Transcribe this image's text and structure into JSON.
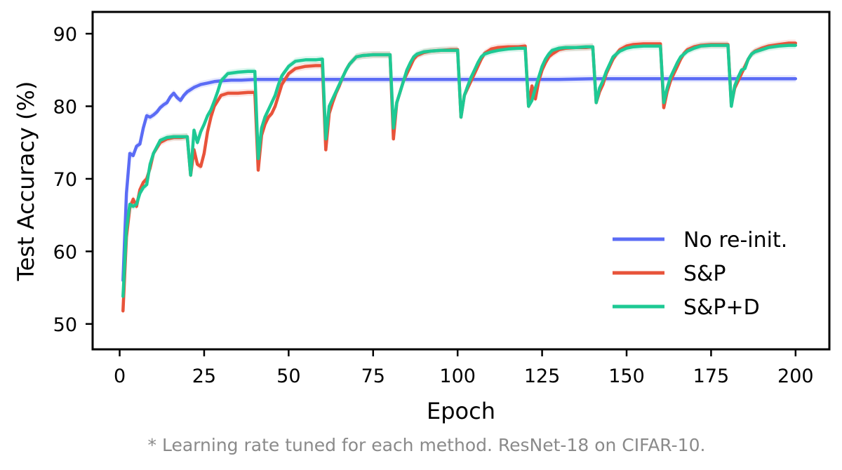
{
  "chart_data": {
    "type": "line",
    "xlabel": "Epoch",
    "ylabel": "Test Accuracy (%)",
    "xlim": [
      -8,
      210
    ],
    "ylim": [
      46.5,
      93
    ],
    "xticks": [
      0,
      25,
      50,
      75,
      100,
      125,
      150,
      175,
      200
    ],
    "yticks": [
      50,
      60,
      70,
      80,
      90
    ],
    "legend_position": "lower-right",
    "grid": false,
    "series": [
      {
        "name": "No re-init.",
        "color": "#5b6cf5",
        "x": [
          1,
          2,
          3,
          4,
          5,
          6,
          7,
          8,
          9,
          10,
          11,
          12,
          13,
          14,
          15,
          16,
          17,
          18,
          19,
          20,
          21,
          22,
          23,
          24,
          25,
          26,
          28,
          30,
          33,
          36,
          40,
          45,
          50,
          60,
          70,
          80,
          90,
          100,
          110,
          120,
          130,
          140,
          150,
          160,
          170,
          180,
          190,
          200
        ],
        "y": [
          56,
          68,
          73.5,
          73.2,
          74.5,
          74.8,
          77,
          78.7,
          78.5,
          78.8,
          79.2,
          79.8,
          80.2,
          80.5,
          81.3,
          81.8,
          81.2,
          80.8,
          81.5,
          82,
          82.3,
          82.6,
          82.8,
          83,
          83.1,
          83.2,
          83.4,
          83.5,
          83.6,
          83.6,
          83.7,
          83.7,
          83.7,
          83.7,
          83.7,
          83.7,
          83.7,
          83.7,
          83.7,
          83.7,
          83.7,
          83.8,
          83.8,
          83.8,
          83.8,
          83.8,
          83.8,
          83.8
        ]
      },
      {
        "name": "S&P",
        "color": "#e8533a",
        "x": [
          1,
          2,
          3,
          4,
          5,
          6,
          7,
          8,
          9,
          10,
          12,
          14,
          16,
          18,
          20,
          21,
          22,
          23,
          24,
          25,
          26,
          27,
          28,
          30,
          32,
          35,
          38,
          40,
          41,
          42,
          43,
          44,
          45,
          46,
          47,
          48,
          50,
          52,
          55,
          58,
          60,
          61,
          62,
          63,
          64,
          65,
          66,
          67,
          68,
          70,
          72,
          75,
          78,
          80,
          81,
          82,
          83,
          84,
          85,
          86,
          87,
          88,
          90,
          92,
          95,
          98,
          100,
          101,
          102,
          103,
          104,
          105,
          106,
          107,
          108,
          110,
          112,
          115,
          118,
          120,
          121,
          122,
          123,
          124,
          125,
          126,
          127,
          128,
          130,
          132,
          135,
          138,
          140,
          141,
          142,
          143,
          144,
          145,
          146,
          147,
          148,
          150,
          152,
          155,
          158,
          160,
          161,
          162,
          163,
          164,
          165,
          166,
          167,
          168,
          170,
          172,
          175,
          178,
          180,
          181,
          182,
          183,
          184,
          185,
          186,
          187,
          188,
          190,
          192,
          195,
          198,
          200
        ],
        "y": [
          51.8,
          62,
          66,
          67.2,
          66.2,
          68.5,
          69.5,
          70,
          71.5,
          73.5,
          75,
          75.5,
          75.7,
          75.7,
          75.8,
          70.5,
          74,
          72,
          71.7,
          73.5,
          76.5,
          78.5,
          80,
          81.5,
          81.8,
          81.8,
          81.9,
          81.9,
          71.2,
          76,
          77.5,
          78.5,
          79,
          80,
          81.5,
          83,
          84.5,
          85.2,
          85.5,
          85.6,
          85.6,
          74,
          79,
          80.5,
          81.8,
          82.8,
          84,
          85,
          85.8,
          86.8,
          87,
          87.1,
          87.1,
          87.1,
          75.5,
          80.5,
          82,
          83.5,
          84.5,
          85.5,
          86.5,
          87,
          87.4,
          87.6,
          87.7,
          87.8,
          87.8,
          78.5,
          81.5,
          82.5,
          83.5,
          84.5,
          85.5,
          86.5,
          87.3,
          87.9,
          88.1,
          88.2,
          88.2,
          88.3,
          80,
          82.8,
          81,
          83.5,
          85,
          86,
          86.8,
          87.2,
          87.8,
          88,
          88.1,
          88.1,
          88.2,
          80.5,
          82,
          83,
          84.5,
          85.5,
          86.5,
          87.2,
          87.8,
          88.3,
          88.5,
          88.6,
          88.6,
          88.6,
          79.8,
          82,
          83.5,
          84.5,
          85.5,
          86.5,
          87.3,
          87.8,
          88.2,
          88.4,
          88.5,
          88.5,
          88.5,
          80.2,
          82.5,
          83.5,
          84.5,
          85.5,
          86.5,
          87.2,
          87.6,
          88,
          88.3,
          88.5,
          88.7,
          88.7
        ]
      },
      {
        "name": "S&P+D",
        "color": "#1ec994",
        "x": [
          1,
          2,
          3,
          4,
          5,
          6,
          7,
          8,
          9,
          10,
          12,
          14,
          16,
          18,
          20,
          21,
          22,
          23,
          24,
          25,
          26,
          27,
          28,
          29,
          30,
          32,
          35,
          38,
          40,
          41,
          42,
          43,
          44,
          45,
          46,
          47,
          48,
          50,
          52,
          55,
          58,
          60,
          61,
          62,
          63,
          64,
          65,
          66,
          67,
          68,
          70,
          72,
          75,
          78,
          80,
          81,
          82,
          83,
          84,
          85,
          86,
          87,
          88,
          90,
          92,
          95,
          98,
          100,
          101,
          102,
          103,
          104,
          105,
          106,
          107,
          108,
          110,
          112,
          115,
          118,
          120,
          121,
          122,
          123,
          124,
          125,
          126,
          127,
          128,
          130,
          132,
          135,
          138,
          140,
          141,
          142,
          143,
          144,
          145,
          146,
          147,
          148,
          150,
          152,
          155,
          158,
          160,
          161,
          162,
          163,
          164,
          165,
          166,
          167,
          168,
          170,
          172,
          175,
          178,
          180,
          181,
          182,
          183,
          184,
          185,
          186,
          187,
          188,
          190,
          192,
          195,
          198,
          200
        ],
        "y": [
          53.8,
          63,
          66.5,
          66.2,
          66.5,
          68,
          68.8,
          69.2,
          72,
          73.5,
          75.3,
          75.7,
          75.8,
          75.8,
          75.8,
          70.5,
          76.7,
          75,
          76.5,
          77.5,
          78.7,
          79.5,
          80.7,
          82,
          83.5,
          84.5,
          84.7,
          84.8,
          84.8,
          72.8,
          77,
          78.5,
          79.5,
          80.5,
          81.5,
          83,
          84.2,
          85.5,
          86.2,
          86.4,
          86.4,
          86.5,
          75.5,
          80,
          81,
          82,
          83,
          84,
          85,
          85.8,
          86.8,
          87,
          87.1,
          87.1,
          87.1,
          77,
          80.5,
          82,
          83.5,
          85,
          86,
          86.8,
          87.2,
          87.5,
          87.6,
          87.7,
          87.7,
          87.7,
          78.5,
          81.5,
          82.8,
          84,
          85,
          86,
          86.8,
          87.2,
          87.5,
          87.7,
          87.9,
          88,
          88,
          80,
          80.8,
          82.5,
          84,
          85.5,
          86.5,
          87.2,
          87.7,
          88,
          88.1,
          88.1,
          88.2,
          88.2,
          80.5,
          82.5,
          83.5,
          84.8,
          85.8,
          86.8,
          87.2,
          87.6,
          88,
          88.2,
          88.3,
          88.3,
          88.3,
          80.5,
          82.5,
          84,
          85,
          86,
          86.8,
          87.2,
          87.6,
          88,
          88.3,
          88.4,
          88.4,
          88.4,
          80,
          82.8,
          84,
          85,
          85.2,
          86.5,
          87.2,
          87.5,
          87.8,
          88.1,
          88.3,
          88.4,
          88.4
        ]
      }
    ],
    "annotations": [
      "* Learning rate tuned for each method. ResNet-18 on CIFAR-10."
    ]
  }
}
